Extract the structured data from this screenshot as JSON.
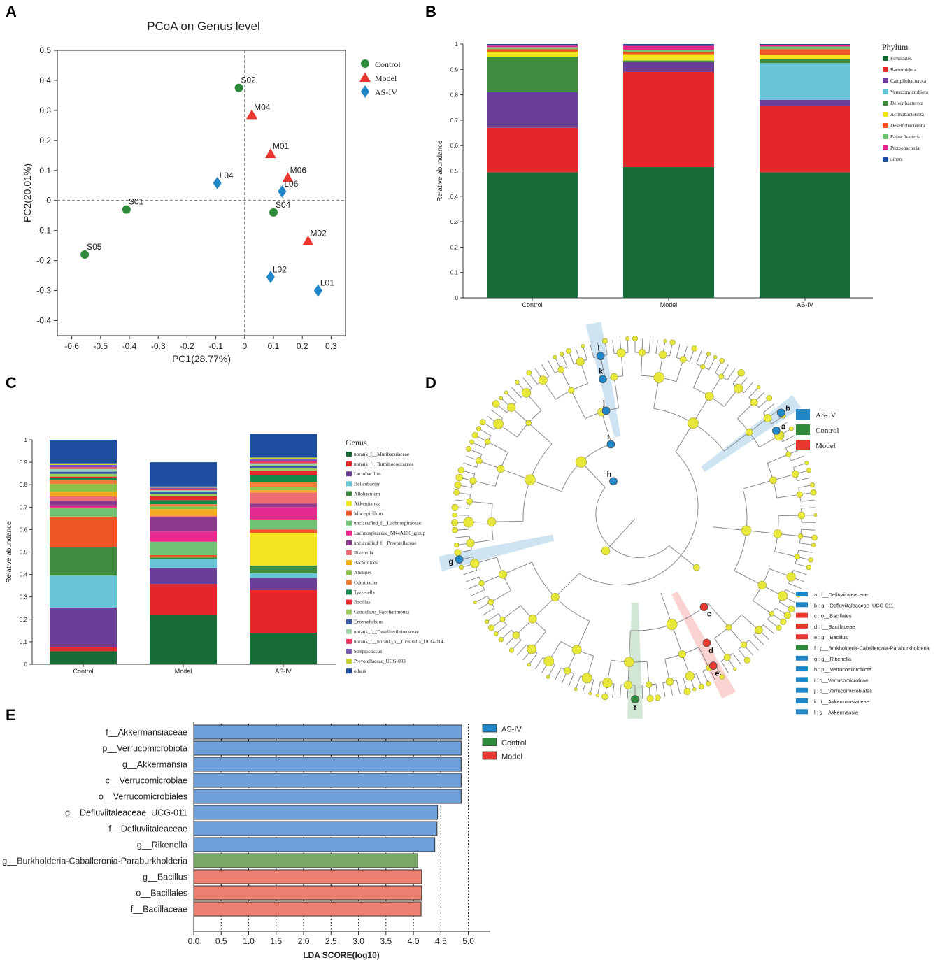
{
  "figure": {
    "panel_letters": [
      "A",
      "B",
      "C",
      "D",
      "E"
    ]
  },
  "colors": {
    "control": "#2e8b3a",
    "model": "#e8372f",
    "asiv": "#1f86c8",
    "lda_asiv": "#6f9fd8",
    "lda_control": "#79a765",
    "lda_model": "#ec8070",
    "node_yellow": "#e8e83a",
    "branch": "#8a8a8a"
  },
  "chart_data": [
    {
      "id": "A",
      "type": "scatter",
      "title": "PCoA on Genus level",
      "xlabel": "PC1(28.77%)",
      "ylabel": "PC2(20.01%)",
      "xlim": [
        -0.65,
        0.35
      ],
      "ylim": [
        -0.45,
        0.5
      ],
      "xticks": [
        -0.6,
        -0.5,
        -0.4,
        -0.3,
        -0.2,
        -0.1,
        0,
        0.1,
        0.2,
        0.3
      ],
      "xtick_labels": [
        "-0.6",
        "-0.5",
        "-0.4",
        "-0.3",
        "-0.2",
        "-0.1",
        "0",
        "0.1",
        "0.2",
        "0.3"
      ],
      "yticks": [
        0.5,
        0.4,
        0.3,
        0.2,
        0.1,
        0,
        -0.1,
        -0.2,
        -0.3,
        -0.4
      ],
      "ytick_labels": [
        "0.5",
        "0.4",
        "0.3",
        "0.2",
        "0.1",
        "0",
        "-0.1",
        "-0.2",
        "-0.3",
        "-0.4"
      ],
      "legend": "right",
      "series": [
        {
          "name": "Control",
          "marker": "circle",
          "color": "#2e8b3a",
          "points": [
            {
              "label": "S02",
              "x": -0.02,
              "y": 0.375
            },
            {
              "label": "S01",
              "x": -0.41,
              "y": -0.03
            },
            {
              "label": "S04",
              "x": 0.1,
              "y": -0.04
            },
            {
              "label": "S05",
              "x": -0.555,
              "y": -0.18
            }
          ]
        },
        {
          "name": "Model",
          "marker": "triangle",
          "color": "#e8372f",
          "points": [
            {
              "label": "M04",
              "x": 0.025,
              "y": 0.285
            },
            {
              "label": "M01",
              "x": 0.09,
              "y": 0.155
            },
            {
              "label": "M06",
              "x": 0.15,
              "y": 0.075
            },
            {
              "label": "M02",
              "x": 0.22,
              "y": -0.135
            }
          ]
        },
        {
          "name": "AS-IV",
          "marker": "diamond",
          "color": "#1f86c8",
          "points": [
            {
              "label": "L04",
              "x": -0.095,
              "y": 0.058
            },
            {
              "label": "L06",
              "x": 0.13,
              "y": 0.03
            },
            {
              "label": "L02",
              "x": 0.09,
              "y": -0.255
            },
            {
              "label": "L01",
              "x": 0.255,
              "y": -0.3
            }
          ]
        }
      ]
    },
    {
      "id": "B",
      "type": "bar",
      "stacked": true,
      "ylabel": "Relative abundance",
      "ylim": [
        0,
        1
      ],
      "yticks": [
        0,
        0.1,
        0.2,
        0.3,
        0.4,
        0.5,
        0.6,
        0.7,
        0.8,
        0.9,
        1
      ],
      "ytick_labels": [
        "0",
        "0.1",
        "0.2",
        "0.3",
        "0.4",
        "0.5",
        "0.6",
        "0.7",
        "0.8",
        "0.9",
        "1"
      ],
      "categories": [
        "Control",
        "Model",
        "AS-IV"
      ],
      "legend_title": "Phylum",
      "legend": "right",
      "series": [
        {
          "name": "Firmicutes",
          "color": "#176b36",
          "values": [
            0.495,
            0.515,
            0.495
          ]
        },
        {
          "name": "Bacteroidota",
          "color": "#e5262a",
          "values": [
            0.175,
            0.375,
            0.26
          ]
        },
        {
          "name": "Campilobacterota",
          "color": "#6b3f98",
          "values": [
            0.14,
            0.04,
            0.025
          ]
        },
        {
          "name": "Verrucomicrobiota",
          "color": "#68c5d7",
          "values": [
            0.0,
            0.0,
            0.145
          ]
        },
        {
          "name": "Deferribacterota",
          "color": "#3f8c3f",
          "values": [
            0.14,
            0.005,
            0.015
          ]
        },
        {
          "name": "Actinobacteriota",
          "color": "#f2e51f",
          "values": [
            0.02,
            0.025,
            0.018
          ]
        },
        {
          "name": "Desulfobacterota",
          "color": "#ef5524",
          "values": [
            0.01,
            0.01,
            0.022
          ]
        },
        {
          "name": "Patescibacteria",
          "color": "#72c274",
          "values": [
            0.008,
            0.008,
            0.01
          ]
        },
        {
          "name": "Proteobacteria",
          "color": "#e52a8f",
          "values": [
            0.006,
            0.015,
            0.006
          ]
        },
        {
          "name": "others",
          "color": "#1e4ea0",
          "values": [
            0.006,
            0.007,
            0.004
          ]
        }
      ]
    },
    {
      "id": "C",
      "type": "bar",
      "stacked": true,
      "ylabel": "Relative abundance",
      "ylim": [
        0,
        1
      ],
      "yticks": [
        0,
        0.1,
        0.2,
        0.3,
        0.4,
        0.5,
        0.6,
        0.7,
        0.8,
        0.9,
        1
      ],
      "ytick_labels": [
        "0",
        "0.1",
        "0.2",
        "0.3",
        "0.4",
        "0.5",
        "0.6",
        "0.7",
        "0.8",
        "0.9",
        "1"
      ],
      "categories": [
        "Control",
        "Model",
        "AS-IV"
      ],
      "legend_title": "Genus",
      "legend": "right",
      "series": [
        {
          "name": "norank_f__Muribaculaceae",
          "color": "#176b36",
          "values": [
            0.058,
            0.218,
            0.14
          ]
        },
        {
          "name": "norank_f__Ruminococcaceae",
          "color": "#e5262a",
          "values": [
            0.017,
            0.14,
            0.19
          ]
        },
        {
          "name": "Lactobacillus",
          "color": "#6b3f98",
          "values": [
            0.178,
            0.07,
            0.055
          ]
        },
        {
          "name": "Helicobacter",
          "color": "#68c5d7",
          "values": [
            0.142,
            0.04,
            0.02
          ]
        },
        {
          "name": "Allobaculum",
          "color": "#3f8c3f",
          "values": [
            0.128,
            0.008,
            0.035
          ]
        },
        {
          "name": "Akkermansia",
          "color": "#f2e51f",
          "values": [
            0.0,
            0.0,
            0.145
          ]
        },
        {
          "name": "Mucispirillum",
          "color": "#ef5524",
          "values": [
            0.135,
            0.01,
            0.015
          ]
        },
        {
          "name": "unclassified_f__Lachnospiraceae",
          "color": "#72c274",
          "values": [
            0.04,
            0.06,
            0.045
          ]
        },
        {
          "name": "Lachnospiraceae_NK4A136_group",
          "color": "#e52a8f",
          "values": [
            0.01,
            0.045,
            0.055
          ]
        },
        {
          "name": "unclassified_f__Prevotellaceae",
          "color": "#8c3a8c",
          "values": [
            0.02,
            0.065,
            0.015
          ]
        },
        {
          "name": "Rikenella",
          "color": "#ee6d73",
          "values": [
            0.02,
            0.005,
            0.05
          ]
        },
        {
          "name": "Bacteroides",
          "color": "#f4aa22",
          "values": [
            0.02,
            0.03,
            0.01
          ]
        },
        {
          "name": "Alistipes",
          "color": "#8bc34a",
          "values": [
            0.035,
            0.012,
            0.013
          ]
        },
        {
          "name": "Odoribacter",
          "color": "#f07f3c",
          "values": [
            0.018,
            0.01,
            0.025
          ]
        },
        {
          "name": "Tyzzerella",
          "color": "#138a4a",
          "values": [
            0.01,
            0.018,
            0.03
          ]
        },
        {
          "name": "Bacillus",
          "color": "#e02b2b",
          "values": [
            0.005,
            0.02,
            0.02
          ]
        },
        {
          "name": "Candidatus_Saccharimonas",
          "color": "#9dce5d",
          "values": [
            0.012,
            0.008,
            0.01
          ]
        },
        {
          "name": "Enterorhabdus",
          "color": "#3b5ca8",
          "values": [
            0.01,
            0.008,
            0.01
          ]
        },
        {
          "name": "norank_f__Desulfovibrionaceae",
          "color": "#9ed3a5",
          "values": [
            0.012,
            0.008,
            0.012
          ]
        },
        {
          "name": "norank_f__norank_o__Clostridia_UCG-014",
          "color": "#ea3a5f",
          "values": [
            0.008,
            0.006,
            0.01
          ]
        },
        {
          "name": "Streptococcus",
          "color": "#7d59b8",
          "values": [
            0.01,
            0.006,
            0.008
          ]
        },
        {
          "name": "Prevotellaceae_UCG-003",
          "color": "#c8d12f",
          "values": [
            0.007,
            0.005,
            0.008
          ]
        },
        {
          "name": "others",
          "color": "#1e4ea0",
          "values": [
            0.105,
            0.108,
            0.105
          ]
        }
      ]
    },
    {
      "id": "D",
      "type": "cladogram",
      "legend_groups": [
        {
          "name": "AS-IV",
          "color": "#1f86c8"
        },
        {
          "name": "Control",
          "color": "#2e8b3a"
        },
        {
          "name": "Model",
          "color": "#e8372f"
        }
      ],
      "highlighted": [
        {
          "key": "a",
          "group": "AS-IV",
          "angle_deg": 58,
          "level": 5
        },
        {
          "key": "b",
          "group": "AS-IV",
          "angle_deg": 54,
          "level": 6
        },
        {
          "key": "c",
          "group": "Model",
          "angle_deg": 142,
          "level": 3
        },
        {
          "key": "d",
          "group": "Model",
          "angle_deg": 150,
          "level": 4
        },
        {
          "key": "e",
          "group": "Model",
          "angle_deg": 152,
          "level": 5
        },
        {
          "key": "f",
          "group": "Control",
          "angle_deg": 180,
          "level": 6
        },
        {
          "key": "g",
          "group": "AS-IV",
          "angle_deg": 257,
          "level": 6
        },
        {
          "key": "h",
          "group": "AS-IV",
          "angle_deg": 330,
          "level": 1
        },
        {
          "key": "i",
          "group": "AS-IV",
          "angle_deg": 342,
          "level": 2
        },
        {
          "key": "j",
          "group": "AS-IV",
          "angle_deg": 345,
          "level": 3
        },
        {
          "key": "k",
          "group": "AS-IV",
          "angle_deg": 347,
          "level": 4
        },
        {
          "key": "l",
          "group": "AS-IV",
          "angle_deg": 348,
          "level": 5
        }
      ],
      "key_legend": [
        {
          "key": "a",
          "text": "a : f__Defluviitaleaceae",
          "color": "#1f86c8"
        },
        {
          "key": "b",
          "text": "b : g__Defluviitaleaceae_UCG-011",
          "color": "#1f86c8"
        },
        {
          "key": "c",
          "text": "c : o__Bacillales",
          "color": "#e8372f"
        },
        {
          "key": "d",
          "text": "d : f__Bacillaceae",
          "color": "#e8372f"
        },
        {
          "key": "e",
          "text": "e : g__Bacillus",
          "color": "#e8372f"
        },
        {
          "key": "f",
          "text": "f : g__Burkholderia-Caballeronia-Paraburkholderia",
          "color": "#2e8b3a"
        },
        {
          "key": "g",
          "text": "g : g__Rikenella",
          "color": "#1f86c8"
        },
        {
          "key": "h",
          "text": "h : p__Verrucomicrobiota",
          "color": "#1f86c8"
        },
        {
          "key": "i",
          "text": "i : c__Verrucomicrobiae",
          "color": "#1f86c8"
        },
        {
          "key": "j",
          "text": "j : o__Verrucomicrobiales",
          "color": "#1f86c8"
        },
        {
          "key": "k",
          "text": "k : f__Akkermansiaceae",
          "color": "#1f86c8"
        },
        {
          "key": "l",
          "text": "l : g__Akkermansia",
          "color": "#1f86c8"
        }
      ]
    },
    {
      "id": "E",
      "type": "bar",
      "orientation": "horizontal",
      "xlabel": "LDA SCORE(log10)",
      "xlim": [
        0,
        5.4
      ],
      "xticks": [
        0,
        0.5,
        1,
        1.5,
        2,
        2.5,
        3,
        3.5,
        4,
        4.5,
        5
      ],
      "xtick_labels": [
        "0.0",
        "0.5",
        "1.0",
        "1.5",
        "2.0",
        "2.5",
        "3.0",
        "3.5",
        "4.0",
        "4.5",
        "5.0"
      ],
      "grid": true,
      "legend": "top-right",
      "legend_groups": [
        {
          "name": "AS-IV",
          "color": "#1f86c8"
        },
        {
          "name": "Control",
          "color": "#2e8b3a"
        },
        {
          "name": "Model",
          "color": "#e8372f"
        }
      ],
      "categories": [
        "f__Akkermansiaceae",
        "p__Verrucomicrobiota",
        "g__Akkermansia",
        "c__Verrucomicrobiae",
        "o__Verrucomicrobiales",
        "g__Defluviitaleaceae_UCG-011",
        "f__Defluviitaleaceae",
        "g__Rikenella",
        "g__Burkholderia-Caballeronia-Paraburkholderia",
        "g__Bacillus",
        "o__Bacillales",
        "f__Bacillaceae"
      ],
      "values": [
        4.88,
        4.87,
        4.87,
        4.87,
        4.87,
        4.44,
        4.43,
        4.39,
        4.08,
        4.15,
        4.15,
        4.14
      ],
      "groups": [
        "AS-IV",
        "AS-IV",
        "AS-IV",
        "AS-IV",
        "AS-IV",
        "AS-IV",
        "AS-IV",
        "AS-IV",
        "Control",
        "Model",
        "Model",
        "Model"
      ]
    }
  ]
}
